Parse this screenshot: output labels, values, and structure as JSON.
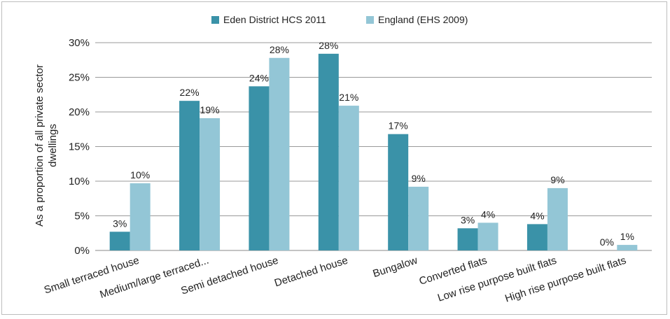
{
  "chart_data": {
    "type": "bar",
    "ylabel": "As a proportion of all private sector dwellings",
    "xlabel": "",
    "ylim": [
      0,
      30
    ],
    "ytick_labels": [
      "0%",
      "5%",
      "10%",
      "15%",
      "20%",
      "25%",
      "30%"
    ],
    "grid": true,
    "legend_position": "top-center",
    "categories": [
      "Small terraced house",
      "Medium/large terraced...",
      "Semi detached house",
      "Detached house",
      "Bungalow",
      "Converted flats",
      "Low rise purpose built flats",
      "High rise purpose built flats"
    ],
    "series": [
      {
        "name": "Eden District HCS 2011",
        "color": "#3a92a8",
        "values": [
          2.7,
          21.6,
          23.7,
          28.4,
          16.8,
          3.2,
          3.8,
          0.0
        ],
        "labels": [
          "3%",
          "22%",
          "24%",
          "28%",
          "17%",
          "3%",
          "4%",
          "0%"
        ]
      },
      {
        "name": "England (EHS 2009)",
        "color": "#93c6d6",
        "values": [
          9.7,
          19.1,
          27.8,
          20.9,
          9.2,
          4.0,
          9.0,
          0.8
        ],
        "labels": [
          "10%",
          "19%",
          "28%",
          "21%",
          "9%",
          "4%",
          "9%",
          "1%"
        ]
      }
    ]
  }
}
